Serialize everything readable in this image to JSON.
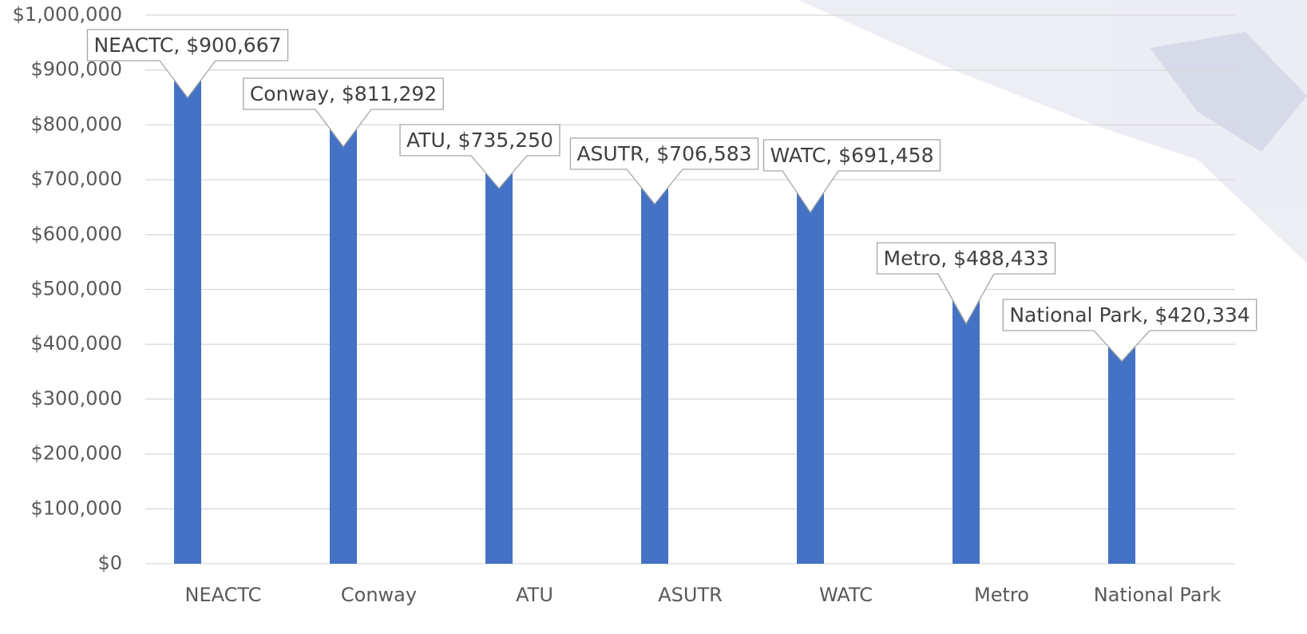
{
  "chart_data": {
    "type": "bar",
    "categories": [
      "NEACTC",
      "Conway",
      "ATU",
      "ASUTR",
      "WATC",
      "Metro",
      "National Park"
    ],
    "values": [
      900667,
      811292,
      735250,
      706583,
      691458,
      488433,
      420334
    ],
    "value_labels": [
      "NEACTC, $900,667",
      "Conway, $811,292",
      "ATU, $735,250",
      "ASUTR, $706,583",
      "WATC, $691,458",
      "Metro, $488,433",
      "National Park, $420,334"
    ],
    "color": "#4472c4",
    "ylim": [
      0,
      1000000
    ],
    "yticks": [
      {
        "value": 0,
        "label": "$0"
      },
      {
        "value": 100000,
        "label": "$100,000"
      },
      {
        "value": 200000,
        "label": "$200,000"
      },
      {
        "value": 300000,
        "label": "$300,000"
      },
      {
        "value": 400000,
        "label": "$400,000"
      },
      {
        "value": 500000,
        "label": "$500,000"
      },
      {
        "value": 600000,
        "label": "$600,000"
      },
      {
        "value": 700000,
        "label": "$700,000"
      },
      {
        "value": 800000,
        "label": "$800,000"
      },
      {
        "value": 900000,
        "label": "$900,000"
      },
      {
        "value": 1000000,
        "label": "$1,000,000"
      }
    ],
    "grid": true
  }
}
